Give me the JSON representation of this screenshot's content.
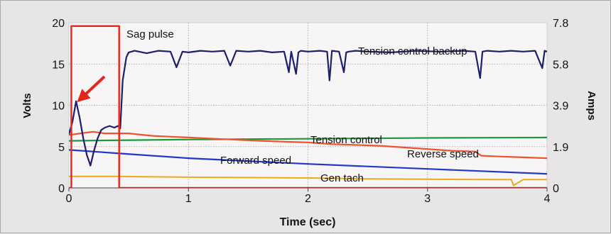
{
  "chart_data": {
    "type": "line",
    "xlabel": "Time (sec)",
    "ylabel_left": "Volts",
    "ylabel_right": "Amps",
    "xlim": [
      0,
      4
    ],
    "ylim_left": [
      0,
      20
    ],
    "ylim_right": [
      0,
      7.8
    ],
    "xticks": [
      "0",
      "1",
      "2",
      "3",
      "4"
    ],
    "yticks_left": [
      "0",
      "5",
      "10",
      "15",
      "20"
    ],
    "yticks_right": [
      "0",
      "1.9",
      "3.9",
      "5.8",
      "7.8"
    ],
    "grid": true,
    "annotation": "arrow",
    "series": [
      {
        "name": "Sag pulse",
        "color": "#ec2a1c",
        "x": [
          0,
          0.02,
          0.02,
          0.42,
          0.42,
          4.0
        ],
        "y": [
          0,
          0,
          19.6,
          19.6,
          0,
          0
        ]
      },
      {
        "name": "Tension control backup",
        "color": "#1c1f6e",
        "x": [
          0.0,
          0.03,
          0.06,
          0.09,
          0.12,
          0.15,
          0.18,
          0.21,
          0.24,
          0.27,
          0.3,
          0.34,
          0.38,
          0.41,
          0.43,
          0.45,
          0.48,
          0.5,
          0.55,
          0.65,
          0.75,
          0.85,
          0.9,
          0.95,
          1.0,
          1.1,
          1.2,
          1.3,
          1.35,
          1.4,
          1.5,
          1.6,
          1.7,
          1.8,
          1.84,
          1.86,
          1.9,
          1.92,
          1.94,
          2.0,
          2.1,
          2.16,
          2.18,
          2.2,
          2.26,
          2.3,
          2.32,
          2.34,
          2.4,
          2.5,
          2.7,
          2.9,
          3.1,
          3.3,
          3.4,
          3.44,
          3.46,
          3.5,
          3.6,
          3.7,
          3.8,
          3.9,
          3.96,
          3.98,
          4.0
        ],
        "y": [
          6.5,
          8.0,
          10.5,
          8.5,
          6.0,
          4.0,
          2.7,
          4.5,
          6.0,
          7.0,
          7.3,
          7.5,
          7.3,
          7.5,
          7.2,
          13.0,
          15.8,
          16.4,
          16.6,
          16.3,
          16.6,
          16.5,
          14.6,
          16.5,
          16.4,
          16.6,
          16.5,
          16.6,
          14.8,
          16.6,
          16.5,
          16.6,
          16.4,
          16.5,
          14.0,
          16.5,
          13.8,
          16.4,
          16.6,
          16.5,
          16.6,
          16.5,
          13.0,
          16.6,
          16.5,
          14.0,
          16.4,
          16.5,
          16.6,
          16.5,
          16.4,
          16.6,
          16.5,
          16.6,
          16.5,
          13.3,
          16.5,
          16.6,
          16.5,
          16.6,
          16.5,
          16.6,
          14.5,
          16.6,
          16.5
        ]
      },
      {
        "name": "Tension control",
        "color": "#1e9a3e",
        "x": [
          0,
          1,
          2,
          3,
          4
        ],
        "y": [
          5.7,
          5.85,
          5.95,
          6.05,
          6.1
        ]
      },
      {
        "name": "Reverse speed",
        "color": "#f0522c",
        "x": [
          0,
          0.2,
          0.3,
          0.5,
          0.7,
          1.0,
          1.3,
          1.6,
          1.8,
          2.0,
          2.2,
          2.4,
          2.6,
          2.8,
          3.0,
          3.2,
          3.4,
          3.45,
          3.6,
          3.8,
          4.0
        ],
        "y": [
          6.4,
          6.8,
          6.6,
          6.6,
          6.3,
          6.1,
          5.9,
          5.7,
          5.6,
          5.5,
          5.3,
          5.2,
          5.1,
          4.9,
          4.7,
          4.5,
          4.4,
          3.9,
          3.8,
          3.7,
          3.6
        ]
      },
      {
        "name": "Forward speed",
        "color": "#2238c8",
        "x": [
          0,
          0.2,
          0.4,
          1.0,
          2.0,
          3.0,
          4.0
        ],
        "y": [
          4.6,
          4.4,
          4.2,
          3.6,
          2.9,
          2.3,
          1.7
        ]
      },
      {
        "name": "Gen tach",
        "color": "#f0a81a",
        "x": [
          0,
          0.4,
          1.0,
          1.5,
          2.0,
          2.5,
          3.0,
          3.6,
          3.7,
          3.72,
          3.8,
          4.0
        ],
        "y": [
          1.4,
          1.4,
          1.3,
          1.25,
          1.2,
          1.1,
          1.05,
          1.0,
          1.0,
          0.3,
          1.0,
          1.0
        ]
      }
    ]
  }
}
